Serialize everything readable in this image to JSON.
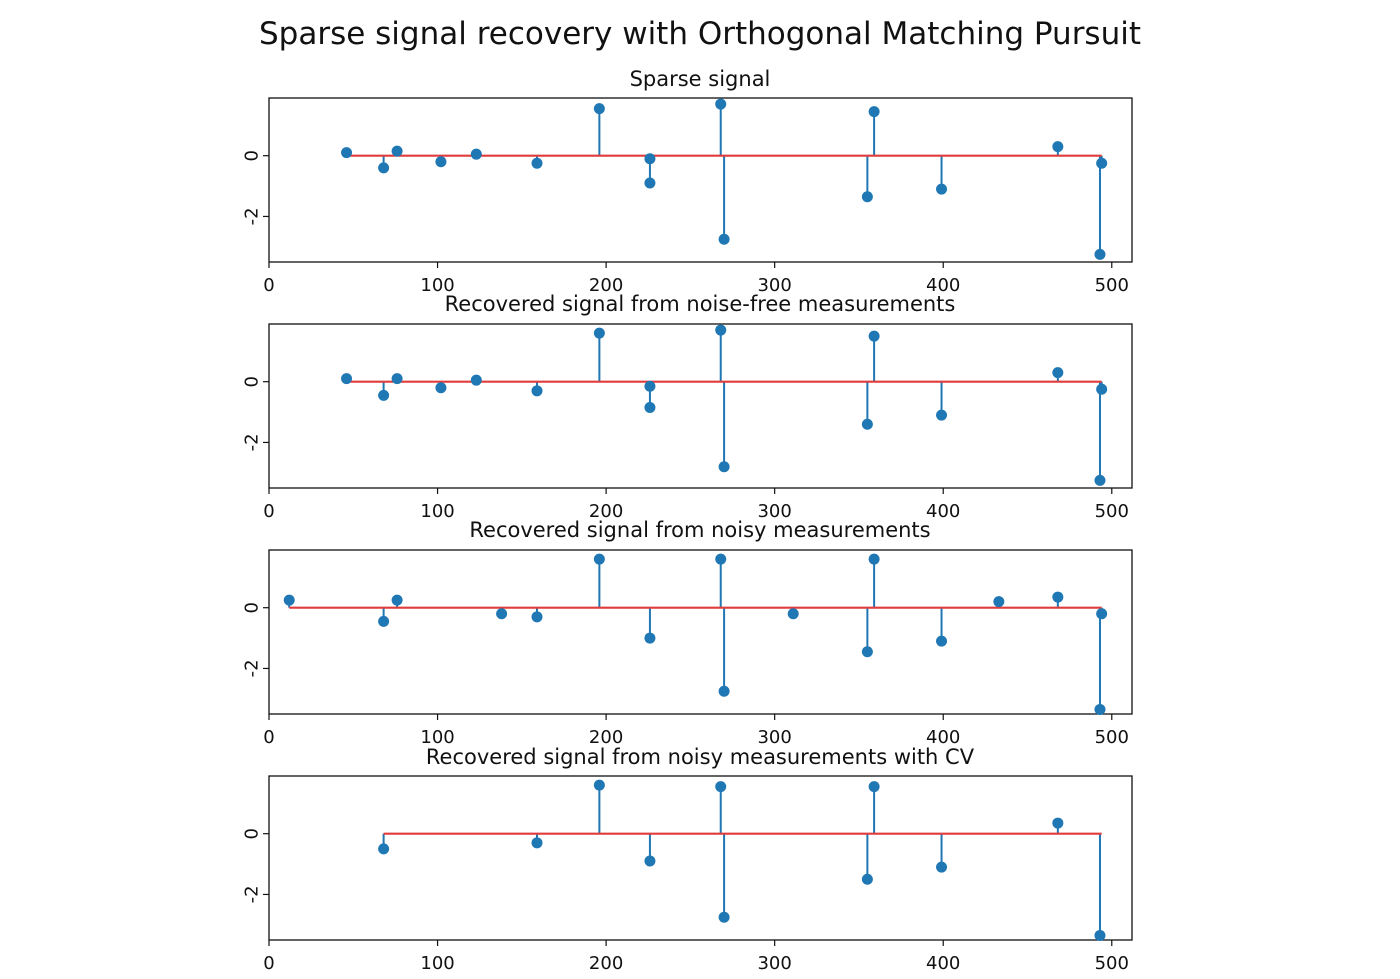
{
  "figure": {
    "suptitle": "Sparse signal recovery with Orthogonal Matching Pursuit"
  },
  "style": {
    "stem_color": "#1f77b4",
    "marker_color": "#1f77b4",
    "baseline_color": "#e03c3c",
    "axis_color": "#111111"
  },
  "chart_data": [
    {
      "type": "stem",
      "title": "Sparse signal",
      "xlim": [
        0,
        512
      ],
      "ylim": [
        -3.5,
        1.9
      ],
      "xticks": [
        0,
        100,
        200,
        300,
        400,
        500
      ],
      "yticks": [
        0,
        -2
      ],
      "ytick_labels": [
        "0",
        "-2"
      ],
      "grid": false,
      "points": [
        {
          "x": 46,
          "y": 0.1
        },
        {
          "x": 68,
          "y": -0.4
        },
        {
          "x": 76,
          "y": 0.15
        },
        {
          "x": 102,
          "y": -0.2
        },
        {
          "x": 123,
          "y": 0.05
        },
        {
          "x": 159,
          "y": -0.25
        },
        {
          "x": 196,
          "y": 1.55
        },
        {
          "x": 226,
          "y": -0.1
        },
        {
          "x": 226,
          "y": -0.9
        },
        {
          "x": 268,
          "y": 1.7
        },
        {
          "x": 270,
          "y": -2.75
        },
        {
          "x": 355,
          "y": -1.35
        },
        {
          "x": 359,
          "y": 1.45
        },
        {
          "x": 399,
          "y": -1.1
        },
        {
          "x": 468,
          "y": 0.3
        },
        {
          "x": 493,
          "y": -3.25
        },
        {
          "x": 494,
          "y": -0.25
        }
      ],
      "baseline": {
        "x_start": 46,
        "x_end": 494,
        "y": 0
      }
    },
    {
      "type": "stem",
      "title": "Recovered signal from noise-free measurements",
      "xlim": [
        0,
        512
      ],
      "ylim": [
        -3.5,
        1.9
      ],
      "xticks": [
        0,
        100,
        200,
        300,
        400,
        500
      ],
      "yticks": [
        0,
        -2
      ],
      "ytick_labels": [
        "0",
        "-2"
      ],
      "grid": false,
      "points": [
        {
          "x": 46,
          "y": 0.1
        },
        {
          "x": 68,
          "y": -0.45
        },
        {
          "x": 76,
          "y": 0.1
        },
        {
          "x": 102,
          "y": -0.2
        },
        {
          "x": 123,
          "y": 0.05
        },
        {
          "x": 159,
          "y": -0.3
        },
        {
          "x": 196,
          "y": 1.6
        },
        {
          "x": 226,
          "y": -0.15
        },
        {
          "x": 226,
          "y": -0.85
        },
        {
          "x": 268,
          "y": 1.7
        },
        {
          "x": 270,
          "y": -2.8
        },
        {
          "x": 355,
          "y": -1.4
        },
        {
          "x": 359,
          "y": 1.5
        },
        {
          "x": 399,
          "y": -1.1
        },
        {
          "x": 468,
          "y": 0.3
        },
        {
          "x": 493,
          "y": -3.25
        },
        {
          "x": 494,
          "y": -0.25
        }
      ],
      "baseline": {
        "x_start": 46,
        "x_end": 494,
        "y": 0
      }
    },
    {
      "type": "stem",
      "title": "Recovered signal from noisy measurements",
      "xlim": [
        0,
        512
      ],
      "ylim": [
        -3.5,
        1.9
      ],
      "xticks": [
        0,
        100,
        200,
        300,
        400,
        500
      ],
      "yticks": [
        0,
        -2
      ],
      "ytick_labels": [
        "0",
        "-2"
      ],
      "grid": false,
      "points": [
        {
          "x": 12,
          "y": 0.25
        },
        {
          "x": 68,
          "y": -0.45
        },
        {
          "x": 76,
          "y": 0.25
        },
        {
          "x": 138,
          "y": -0.2
        },
        {
          "x": 159,
          "y": -0.3
        },
        {
          "x": 196,
          "y": 1.6
        },
        {
          "x": 226,
          "y": -1.0
        },
        {
          "x": 268,
          "y": 1.6
        },
        {
          "x": 270,
          "y": -2.75
        },
        {
          "x": 311,
          "y": -0.2
        },
        {
          "x": 355,
          "y": -1.45
        },
        {
          "x": 359,
          "y": 1.6
        },
        {
          "x": 399,
          "y": -1.1
        },
        {
          "x": 433,
          "y": 0.2
        },
        {
          "x": 468,
          "y": 0.35
        },
        {
          "x": 493,
          "y": -3.35
        },
        {
          "x": 494,
          "y": -0.2
        }
      ],
      "baseline": {
        "x_start": 12,
        "x_end": 494,
        "y": 0
      }
    },
    {
      "type": "stem",
      "title": "Recovered signal from noisy measurements with CV",
      "xlim": [
        0,
        512
      ],
      "ylim": [
        -3.5,
        1.9
      ],
      "xticks": [
        0,
        100,
        200,
        300,
        400,
        500
      ],
      "yticks": [
        0,
        -2
      ],
      "ytick_labels": [
        "0",
        "-2"
      ],
      "grid": false,
      "points": [
        {
          "x": 68,
          "y": -0.5
        },
        {
          "x": 159,
          "y": -0.3
        },
        {
          "x": 196,
          "y": 1.6
        },
        {
          "x": 226,
          "y": -0.9
        },
        {
          "x": 268,
          "y": 1.55
        },
        {
          "x": 270,
          "y": -2.75
        },
        {
          "x": 355,
          "y": -1.5
        },
        {
          "x": 359,
          "y": 1.55
        },
        {
          "x": 399,
          "y": -1.1
        },
        {
          "x": 468,
          "y": 0.35
        },
        {
          "x": 493,
          "y": -3.35
        }
      ],
      "baseline": {
        "x_start": 68,
        "x_end": 494,
        "y": 0
      }
    }
  ]
}
